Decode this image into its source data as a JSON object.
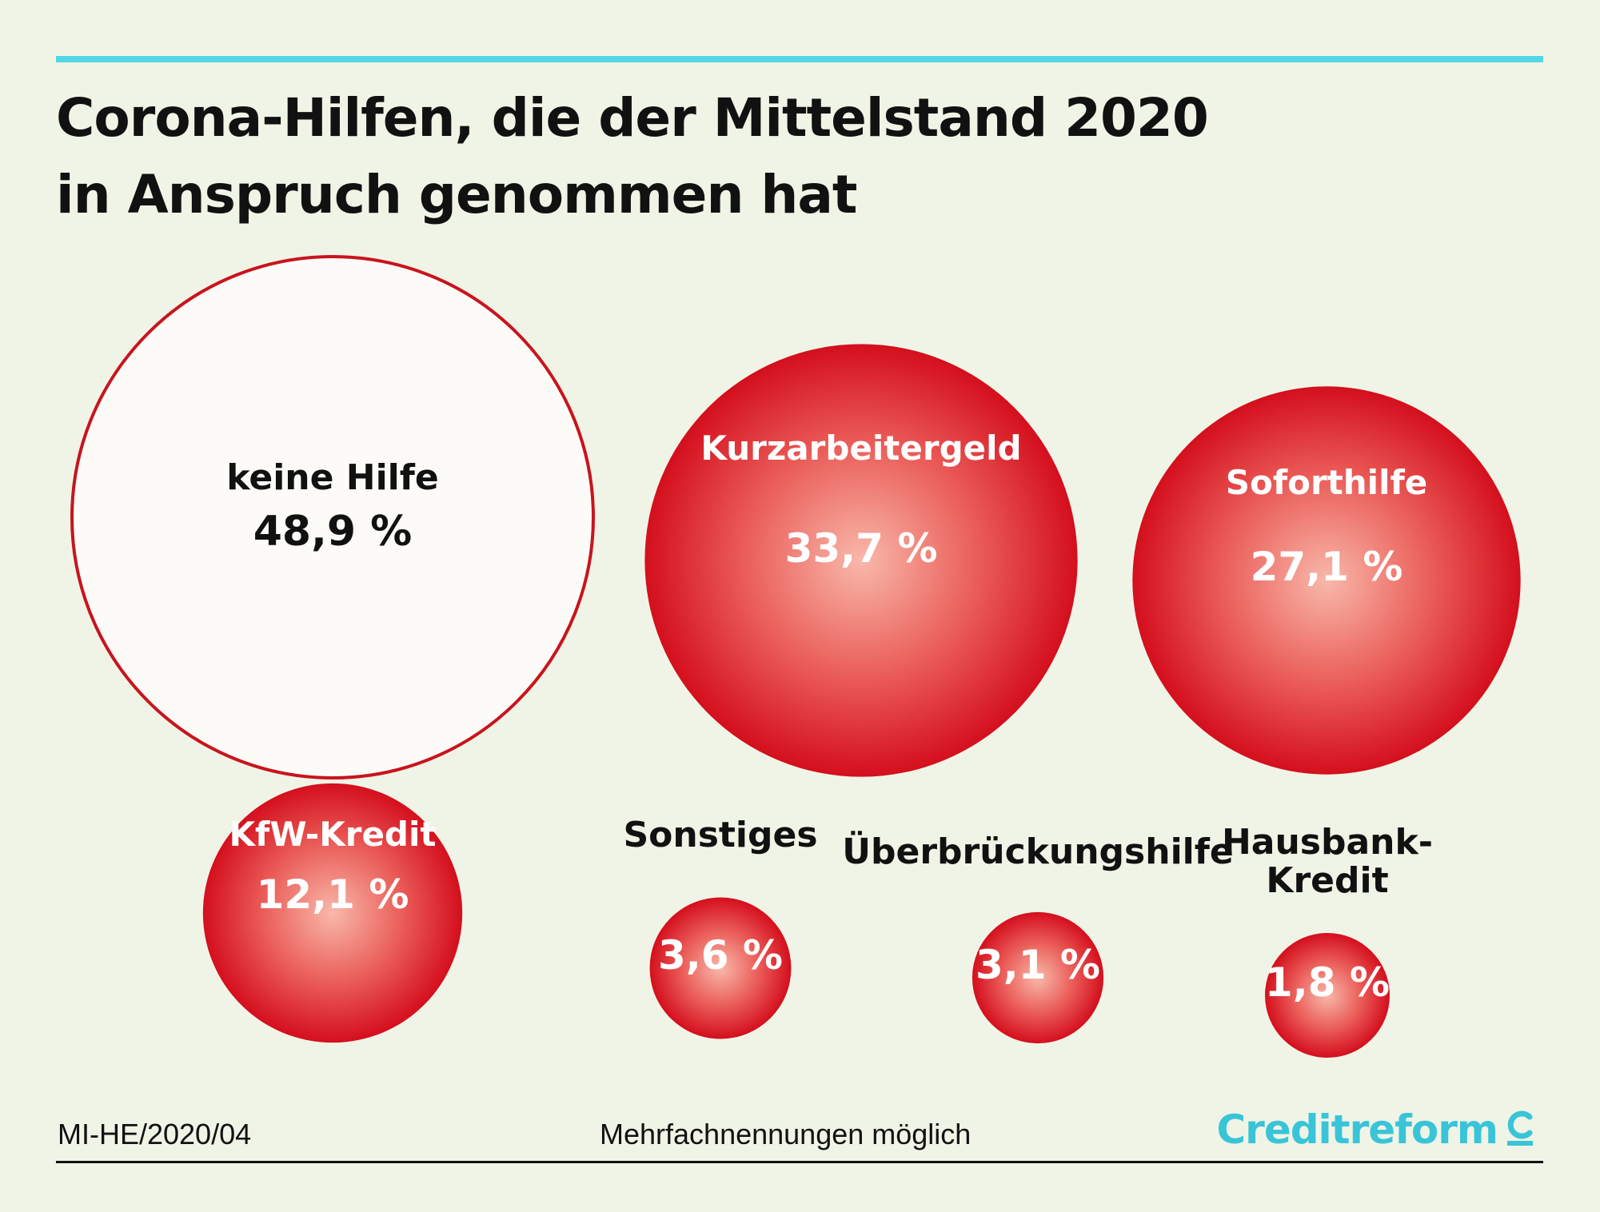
{
  "title": {
    "line1": "Corona-Hilfen, die der Mittelstand 2020",
    "line2": "in Anspruch genommen hat"
  },
  "chart_data": {
    "type": "bubble",
    "title": "Corona-Hilfen, die der Mittelstand 2020 in Anspruch genommen hat",
    "unit": "%",
    "series": [
      {
        "name": "keine Hilfe",
        "label_lines": [
          "keine Hilfe"
        ],
        "value": 48.9,
        "value_label": "48,9 %",
        "style": "outline"
      },
      {
        "name": "Kurzarbeitergeld",
        "label_lines": [
          "Kurzarbeitergeld"
        ],
        "value": 33.7,
        "value_label": "33,7 %",
        "style": "filled"
      },
      {
        "name": "Soforthilfe",
        "label_lines": [
          "Soforthilfe"
        ],
        "value": 27.1,
        "value_label": "27,1 %",
        "style": "filled"
      },
      {
        "name": "KfW-Kredit",
        "label_lines": [
          "KfW-Kredit"
        ],
        "value": 12.1,
        "value_label": "12,1 %",
        "style": "filled"
      },
      {
        "name": "Sonstiges",
        "label_lines": [
          "Sonstiges"
        ],
        "value": 3.6,
        "value_label": "3,6 %",
        "style": "filled"
      },
      {
        "name": "Überbrückungshilfe",
        "label_lines": [
          "Überbrückungshilfe"
        ],
        "value": 3.1,
        "value_label": "3,1 %",
        "style": "filled"
      },
      {
        "name": "Hausbank-Kredit",
        "label_lines": [
          "Hausbank-",
          "Kredit"
        ],
        "value": 1.8,
        "value_label": "1,8 %",
        "style": "filled"
      }
    ]
  },
  "footer": {
    "code": "MI-HE/2020/04",
    "note": "Mehrfachnennungen möglich",
    "brand": "Creditreform"
  },
  "colors": {
    "accent": "#55d6e6",
    "brand": "#39c4d8",
    "bubble_red": "#d8101c",
    "bubble_light": "#f7b3a6",
    "background": "#f0f4e6"
  }
}
